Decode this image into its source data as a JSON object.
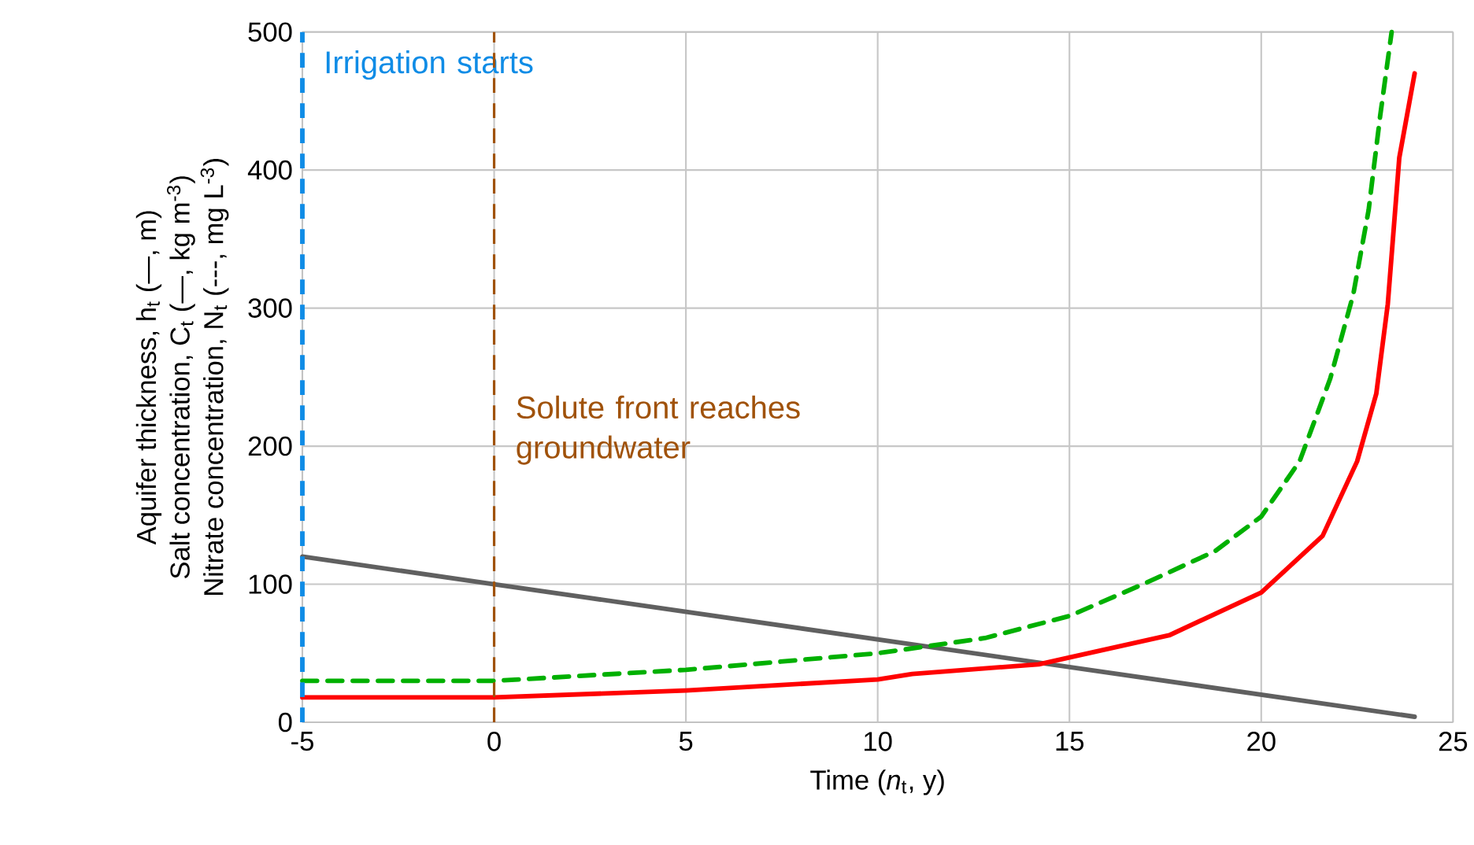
{
  "chart_data": {
    "type": "line",
    "xlabel": "Time (*n*$_{t}$, y)",
    "ylabel": [
      "Aquifer thickness, h$_{t}$ (—, m)",
      "Salt concentration, C$_{t}$ (—, kg m$^{-3}$)",
      "Nitrate concentration, N$_{t}$ (---, mg L$^{-3}$)"
    ],
    "xlim": [
      -5,
      25
    ],
    "ylim": [
      0,
      500
    ],
    "xticks": [
      -5,
      0,
      5,
      10,
      15,
      20,
      25
    ],
    "yticks": [
      0,
      100,
      200,
      300,
      400,
      500
    ],
    "grid": true,
    "marker": "none",
    "series": [
      {
        "color": "#606060",
        "line_style": "solid",
        "x": [
          -5,
          0,
          24
        ],
        "values": [
          120,
          100,
          4
        ]
      },
      {
        "color": "#ff0000",
        "line_style": "solid",
        "x": [
          -5,
          0,
          5,
          10,
          10.9,
          14.2,
          15,
          17.6,
          20,
          21.6,
          22.5,
          23.0,
          23.3,
          23.6,
          24.0
        ],
        "values": [
          18,
          18,
          23,
          31,
          35,
          42,
          47,
          63,
          94,
          135,
          189,
          238,
          303,
          409,
          470
        ]
      },
      {
        "color": "#00b000",
        "line_style": "dashed",
        "x": [
          -5,
          0,
          5,
          10,
          12.8,
          15,
          17,
          18.8,
          20,
          21,
          21.8,
          22.4,
          22.8,
          23.1,
          23.4
        ],
        "values": [
          30,
          30,
          38,
          50,
          61,
          77,
          101,
          124,
          149,
          189,
          249,
          310,
          371,
          439,
          500
        ]
      }
    ],
    "ref_lines": [
      {
        "axis": "x",
        "value": -5,
        "label": "Irrigation starts",
        "color": "#0f8ce6",
        "line_style": "dashed"
      },
      {
        "axis": "x",
        "value": 0,
        "label": "Solute front reaches groundwater",
        "color": "#a0520a",
        "line_style": "dashed"
      }
    ]
  }
}
